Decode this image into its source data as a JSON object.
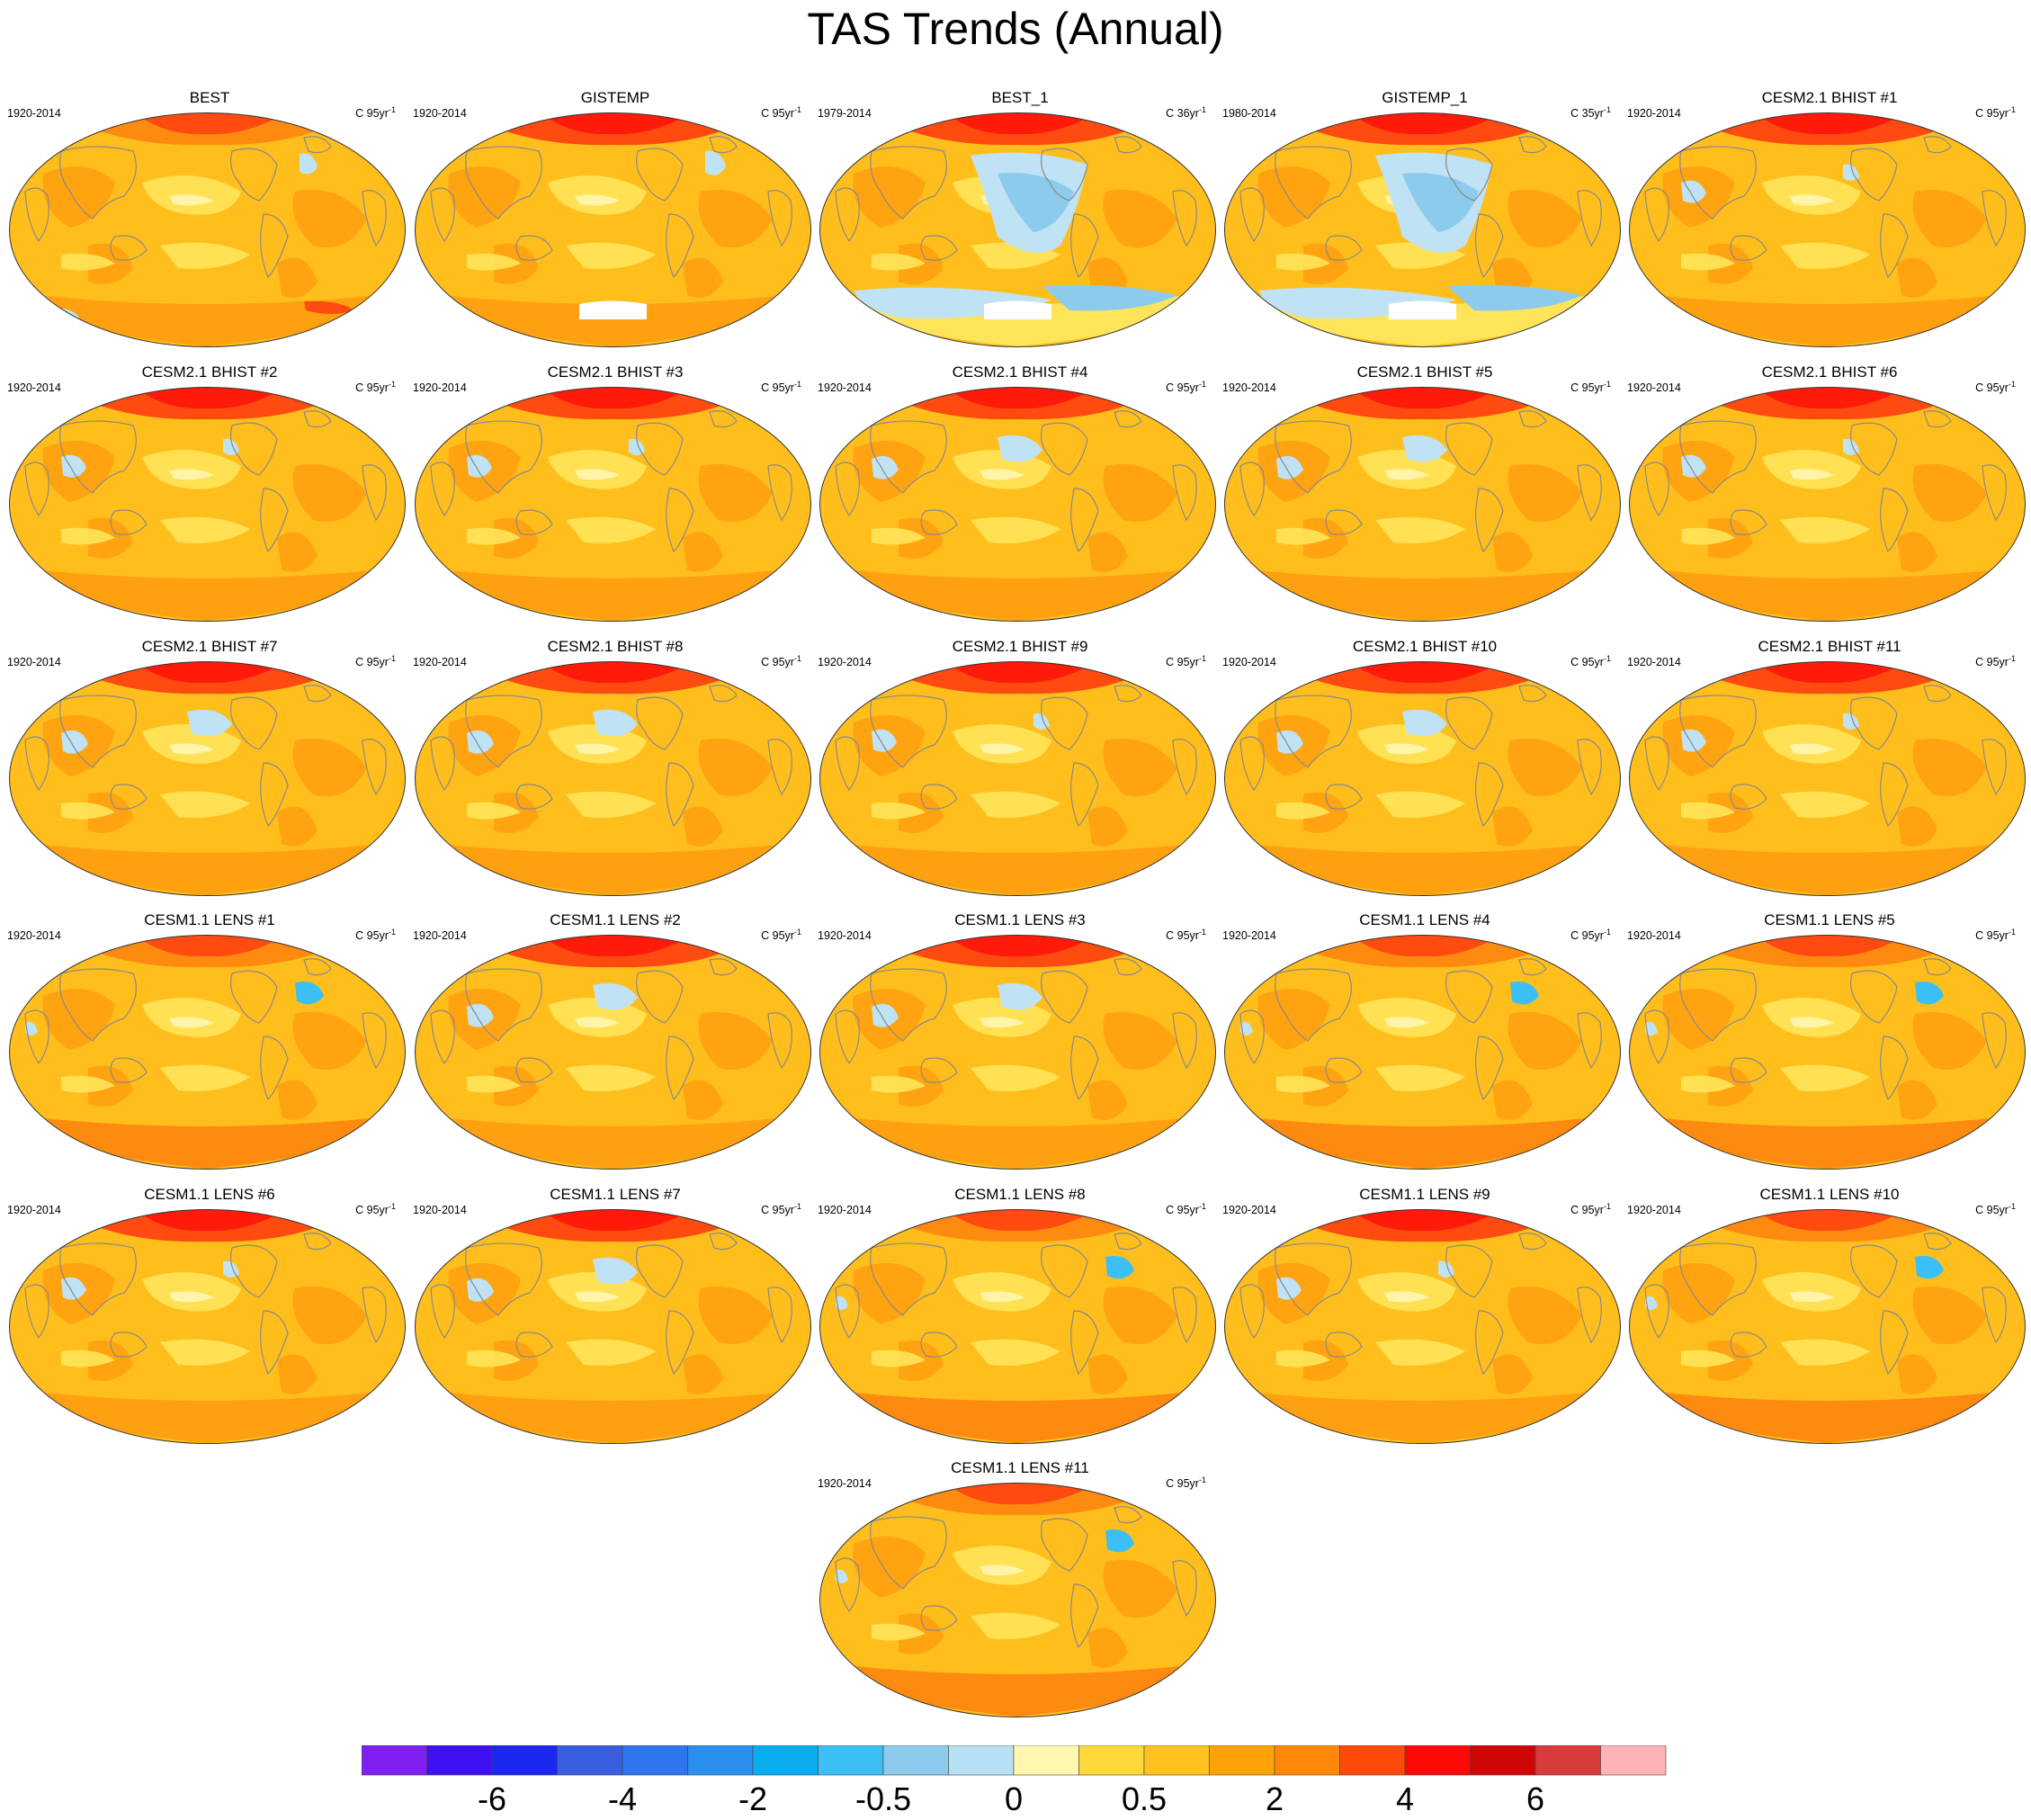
{
  "title": "TAS Trends (Annual)",
  "panels": [
    {
      "title": "BEST",
      "period": "1920-2014",
      "units": "C 95yr",
      "units_exp": "-1",
      "variant": "obs_a"
    },
    {
      "title": "GISTEMP",
      "period": "1920-2014",
      "units": "C 95yr",
      "units_exp": "-1",
      "variant": "obs_b"
    },
    {
      "title": "BEST_1",
      "period": "1979-2014",
      "units": "C 36yr",
      "units_exp": "-1",
      "variant": "obs_recent"
    },
    {
      "title": "GISTEMP_1",
      "period": "1980-2014",
      "units": "C 35yr",
      "units_exp": "-1",
      "variant": "obs_recent"
    },
    {
      "title": "CESM2.1 BHIST #1",
      "period": "1920-2014",
      "units": "C 95yr",
      "units_exp": "-1",
      "variant": "model_a"
    },
    {
      "title": "CESM2.1 BHIST #2",
      "period": "1920-2014",
      "units": "C 95yr",
      "units_exp": "-1",
      "variant": "model_a"
    },
    {
      "title": "CESM2.1 BHIST #3",
      "period": "1920-2014",
      "units": "C 95yr",
      "units_exp": "-1",
      "variant": "model_a"
    },
    {
      "title": "CESM2.1 BHIST #4",
      "period": "1920-2014",
      "units": "C 95yr",
      "units_exp": "-1",
      "variant": "model_b"
    },
    {
      "title": "CESM2.1 BHIST #5",
      "period": "1920-2014",
      "units": "C 95yr",
      "units_exp": "-1",
      "variant": "model_b"
    },
    {
      "title": "CESM2.1 BHIST #6",
      "period": "1920-2014",
      "units": "C 95yr",
      "units_exp": "-1",
      "variant": "model_a"
    },
    {
      "title": "CESM2.1 BHIST #7",
      "period": "1920-2014",
      "units": "C 95yr",
      "units_exp": "-1",
      "variant": "model_b"
    },
    {
      "title": "CESM2.1 BHIST #8",
      "period": "1920-2014",
      "units": "C 95yr",
      "units_exp": "-1",
      "variant": "model_b"
    },
    {
      "title": "CESM2.1 BHIST #9",
      "period": "1920-2014",
      "units": "C 95yr",
      "units_exp": "-1",
      "variant": "model_a"
    },
    {
      "title": "CESM2.1 BHIST #10",
      "period": "1920-2014",
      "units": "C 95yr",
      "units_exp": "-1",
      "variant": "model_b"
    },
    {
      "title": "CESM2.1 BHIST #11",
      "period": "1920-2014",
      "units": "C 95yr",
      "units_exp": "-1",
      "variant": "model_a"
    },
    {
      "title": "CESM1.1 LENS #1",
      "period": "1920-2014",
      "units": "C 95yr",
      "units_exp": "-1",
      "variant": "model_c"
    },
    {
      "title": "CESM1.1 LENS #2",
      "period": "1920-2014",
      "units": "C 95yr",
      "units_exp": "-1",
      "variant": "model_b"
    },
    {
      "title": "CESM1.1 LENS #3",
      "period": "1920-2014",
      "units": "C 95yr",
      "units_exp": "-1",
      "variant": "model_b"
    },
    {
      "title": "CESM1.1 LENS #4",
      "period": "1920-2014",
      "units": "C 95yr",
      "units_exp": "-1",
      "variant": "model_c"
    },
    {
      "title": "CESM1.1 LENS #5",
      "period": "1920-2014",
      "units": "C 95yr",
      "units_exp": "-1",
      "variant": "model_c"
    },
    {
      "title": "CESM1.1 LENS #6",
      "period": "1920-2014",
      "units": "C 95yr",
      "units_exp": "-1",
      "variant": "model_a"
    },
    {
      "title": "CESM1.1 LENS #7",
      "period": "1920-2014",
      "units": "C 95yr",
      "units_exp": "-1",
      "variant": "model_b"
    },
    {
      "title": "CESM1.1 LENS #8",
      "period": "1920-2014",
      "units": "C 95yr",
      "units_exp": "-1",
      "variant": "model_c"
    },
    {
      "title": "CESM1.1 LENS #9",
      "period": "1920-2014",
      "units": "C 95yr",
      "units_exp": "-1",
      "variant": "model_a"
    },
    {
      "title": "CESM1.1 LENS #10",
      "period": "1920-2014",
      "units": "C 95yr",
      "units_exp": "-1",
      "variant": "model_c"
    },
    {
      "title": "CESM1.1 LENS #11",
      "period": "1920-2014",
      "units": "C 95yr",
      "units_exp": "-1",
      "variant": "model_c"
    }
  ],
  "colorbar": {
    "colors": [
      "#7f1ff0",
      "#3f10f0",
      "#1a28f0",
      "#3a5ee0",
      "#2e76ef",
      "#2a8fef",
      "#0aacf0",
      "#3bbff5",
      "#8ccbeb",
      "#b7e0f2",
      "#fff7b0",
      "#ffd83a",
      "#ffc21e",
      "#ffa20a",
      "#ff880a",
      "#ff4a0a",
      "#ff0808",
      "#d00606",
      "#d93a3a",
      "#ffb3b6"
    ],
    "ticks": [
      {
        "label": "-6",
        "boundary": 2
      },
      {
        "label": "-4",
        "boundary": 4
      },
      {
        "label": "-2",
        "boundary": 6
      },
      {
        "label": "-0.5",
        "boundary": 8
      },
      {
        "label": "0",
        "boundary": 10
      },
      {
        "label": "0.5",
        "boundary": 12
      },
      {
        "label": "2",
        "boundary": 14
      },
      {
        "label": "4",
        "boundary": 16
      },
      {
        "label": "6",
        "boundary": 18
      }
    ]
  },
  "palette": {
    "base": "#ffbe1c",
    "warm": "#ffa010",
    "warmer": "#ff8a10",
    "hot": "#ff4a10",
    "hottest": "#ff1a0a",
    "neutral": "#ffe45a",
    "pale": "#fff4a8",
    "cool": "#bfe2f5",
    "cooler": "#8ccbeb",
    "coolest": "#3bbff5",
    "coast": "#8a8a8a"
  }
}
